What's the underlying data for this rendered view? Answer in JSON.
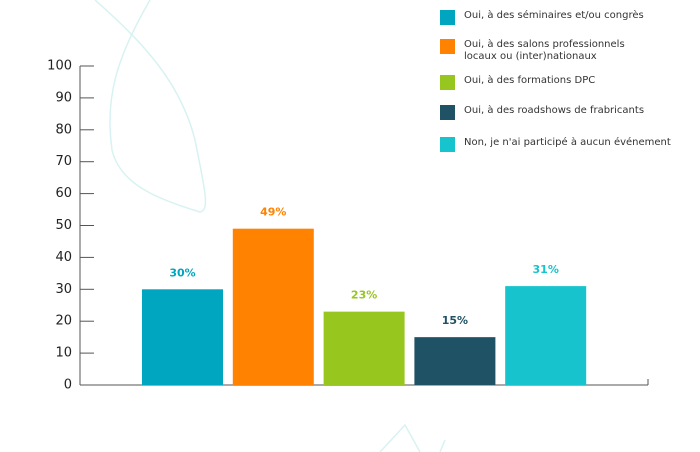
{
  "chart_data": {
    "type": "bar",
    "categories": [
      "Oui, à des séminaires et/ou congrès",
      "Oui, à des salons professionnels\nlocaux ou (inter)nationaux",
      "Oui, à des formations DPC",
      "Oui, à des roadshows de frabricants",
      "Non, je n'ai participé à aucun événement"
    ],
    "values": [
      30,
      49,
      23,
      15,
      31
    ],
    "value_labels": [
      "30%",
      "49%",
      "23%",
      "15%",
      "31%"
    ],
    "colors": [
      "#00a6c0",
      "#ff8300",
      "#97c61e",
      "#1f5264",
      "#17c3cc"
    ],
    "ylim": [
      0,
      100
    ],
    "yticks": [
      0,
      10,
      20,
      30,
      40,
      50,
      60,
      70,
      80,
      90,
      100
    ],
    "legend": "top-right"
  }
}
